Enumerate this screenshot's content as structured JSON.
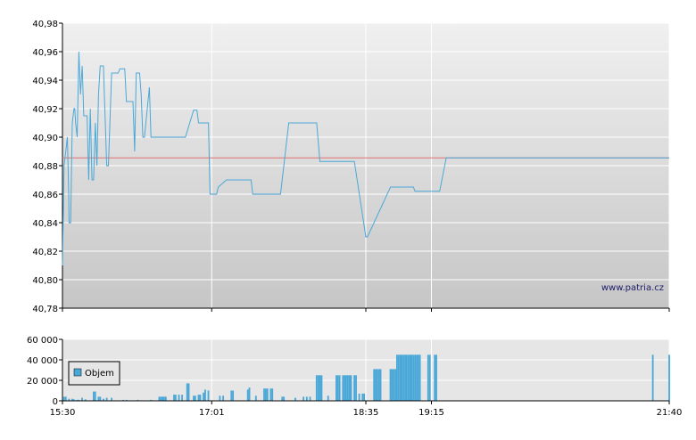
{
  "chart_data": [
    {
      "type": "line",
      "panel": "price",
      "ylim": [
        40.78,
        40.98
      ],
      "y_ticks": [
        "40,98",
        "40,96",
        "40,94",
        "40,92",
        "40,90",
        "40,88",
        "40,86",
        "40,84",
        "40,82",
        "40,80",
        "40,78"
      ],
      "y_tick_values": [
        40.98,
        40.96,
        40.94,
        40.92,
        40.9,
        40.88,
        40.86,
        40.84,
        40.82,
        40.8,
        40.78
      ],
      "x_range_minutes": [
        930,
        1300
      ],
      "reference_line": {
        "value": 40.8855,
        "color": "#e07070"
      },
      "series": [
        {
          "color": "#4aa8d8",
          "x_minutes": [
            930,
            931,
            932,
            933,
            933.8,
            934,
            935,
            936,
            937,
            937.5,
            938,
            939,
            940,
            941,
            942,
            943,
            944,
            945,
            946,
            947,
            948,
            949,
            950,
            951,
            952,
            953,
            954,
            955,
            957,
            958,
            960,
            961,
            962,
            964,
            965,
            967,
            968,
            969,
            970,
            971,
            972,
            973,
            974,
            975,
            976,
            977,
            978,
            979,
            980,
            983,
            984,
            987,
            988,
            989,
            990,
            991,
            994,
            995,
            999,
            1000,
            1005,
            1010,
            1011,
            1012,
            1013,
            1014,
            1015,
            1016,
            1019,
            1020,
            1024,
            1025,
            1030,
            1035,
            1040,
            1045,
            1046,
            1049,
            1050,
            1055,
            1060,
            1063,
            1068,
            1069,
            1072,
            1073,
            1080,
            1085,
            1087,
            1090,
            1093,
            1098,
            1105,
            1108,
            1115,
            1116,
            1130,
            1135,
            1144,
            1145,
            1150,
            1160,
            1164,
            1170,
            1175,
            1180,
            1185,
            1190,
            1200,
            1210,
            1220,
            1230,
            1240,
            1250,
            1260,
            1270,
            1280,
            1290,
            1300
          ],
          "y": [
            40.81,
            40.88,
            40.89,
            40.9,
            40.86,
            40.84,
            40.84,
            40.91,
            40.92,
            40.92,
            40.91,
            40.9,
            40.96,
            40.93,
            40.95,
            40.915,
            40.915,
            40.915,
            40.87,
            40.92,
            40.87,
            40.87,
            40.91,
            40.88,
            40.93,
            40.95,
            40.95,
            40.95,
            40.88,
            40.88,
            40.945,
            40.945,
            40.945,
            40.945,
            40.948,
            40.948,
            40.948,
            40.925,
            40.925,
            40.925,
            40.925,
            40.925,
            40.89,
            40.945,
            40.945,
            40.945,
            40.93,
            40.9,
            40.9,
            40.935,
            40.9,
            40.9,
            40.9,
            40.9,
            40.9,
            40.9,
            40.9,
            40.9,
            40.9,
            40.9,
            40.9,
            40.919,
            40.919,
            40.919,
            40.91,
            40.91,
            40.91,
            40.91,
            40.91,
            40.86,
            40.86,
            40.865,
            40.87,
            40.87,
            40.87,
            40.87,
            40.86,
            40.86,
            40.86,
            40.86,
            40.86,
            40.86,
            40.91,
            40.91,
            40.91,
            40.91,
            40.91,
            40.91,
            40.883,
            40.883,
            40.883,
            40.883,
            40.883,
            40.883,
            40.83,
            40.83,
            40.865,
            40.865,
            40.865,
            40.862,
            40.862,
            40.862,
            40.8855,
            40.8855,
            40.8855,
            40.8855,
            40.8855,
            40.8855,
            40.8855,
            40.8855,
            40.8855,
            40.8855,
            40.8855,
            40.8855,
            40.8855,
            40.8855,
            40.8855,
            40.8855,
            40.8855
          ]
        }
      ],
      "watermark": "www.patria.cz"
    },
    {
      "type": "bar",
      "panel": "volume",
      "ylim": [
        0,
        60000
      ],
      "y_ticks": [
        "60 000",
        "40 000",
        "20 000",
        "0"
      ],
      "y_tick_values": [
        60000,
        40000,
        20000,
        0
      ],
      "x_tick_labels": [
        "15:30",
        "17:01",
        "18:35",
        "19:15",
        "21:40"
      ],
      "x_tick_minutes": [
        930,
        1021,
        1115,
        1155,
        1300
      ],
      "legend": "Objem",
      "color": "#4aa8d8",
      "bars": [
        {
          "x": 931,
          "v": 4000
        },
        {
          "x": 932,
          "v": 4000
        },
        {
          "x": 934,
          "v": 2000
        },
        {
          "x": 936,
          "v": 2000
        },
        {
          "x": 937,
          "v": 1500
        },
        {
          "x": 939,
          "v": 1000
        },
        {
          "x": 940,
          "v": 1000
        },
        {
          "x": 942,
          "v": 3000
        },
        {
          "x": 944,
          "v": 1500
        },
        {
          "x": 949,
          "v": 9000
        },
        {
          "x": 950,
          "v": 9000
        },
        {
          "x": 952,
          "v": 4000
        },
        {
          "x": 953,
          "v": 4000
        },
        {
          "x": 955,
          "v": 2000
        },
        {
          "x": 957,
          "v": 3000
        },
        {
          "x": 960,
          "v": 3000
        },
        {
          "x": 967,
          "v": 1000
        },
        {
          "x": 969,
          "v": 1000
        },
        {
          "x": 976,
          "v": 1000
        },
        {
          "x": 984,
          "v": 1000
        },
        {
          "x": 989,
          "v": 4000
        },
        {
          "x": 990,
          "v": 4000
        },
        {
          "x": 991,
          "v": 4000
        },
        {
          "x": 992,
          "v": 4000
        },
        {
          "x": 993,
          "v": 4000
        },
        {
          "x": 998,
          "v": 6000
        },
        {
          "x": 999,
          "v": 6000
        },
        {
          "x": 1001,
          "v": 6000
        },
        {
          "x": 1003,
          "v": 6000
        },
        {
          "x": 1006,
          "v": 17000
        },
        {
          "x": 1007,
          "v": 17000
        },
        {
          "x": 1010,
          "v": 5000
        },
        {
          "x": 1011,
          "v": 5000
        },
        {
          "x": 1013,
          "v": 6000
        },
        {
          "x": 1014,
          "v": 6000
        },
        {
          "x": 1016,
          "v": 8000
        },
        {
          "x": 1017,
          "v": 11000
        },
        {
          "x": 1019,
          "v": 10000
        },
        {
          "x": 1026,
          "v": 5000
        },
        {
          "x": 1028,
          "v": 5000
        },
        {
          "x": 1033,
          "v": 10000
        },
        {
          "x": 1034,
          "v": 10000
        },
        {
          "x": 1043,
          "v": 11000
        },
        {
          "x": 1044,
          "v": 13000
        },
        {
          "x": 1048,
          "v": 5000
        },
        {
          "x": 1053,
          "v": 12000
        },
        {
          "x": 1054,
          "v": 12000
        },
        {
          "x": 1055,
          "v": 12000
        },
        {
          "x": 1057,
          "v": 12000
        },
        {
          "x": 1058,
          "v": 12000
        },
        {
          "x": 1064,
          "v": 4000
        },
        {
          "x": 1065,
          "v": 4000
        },
        {
          "x": 1072,
          "v": 3000
        },
        {
          "x": 1077,
          "v": 4000
        },
        {
          "x": 1079,
          "v": 4000
        },
        {
          "x": 1081,
          "v": 4000
        },
        {
          "x": 1085,
          "v": 25000
        },
        {
          "x": 1086,
          "v": 25000
        },
        {
          "x": 1087,
          "v": 25000
        },
        {
          "x": 1088,
          "v": 25000
        },
        {
          "x": 1092,
          "v": 5000
        },
        {
          "x": 1097,
          "v": 25000
        },
        {
          "x": 1098,
          "v": 25000
        },
        {
          "x": 1099,
          "v": 25000
        },
        {
          "x": 1101,
          "v": 25000
        },
        {
          "x": 1102,
          "v": 25000
        },
        {
          "x": 1103,
          "v": 25000
        },
        {
          "x": 1104,
          "v": 25000
        },
        {
          "x": 1105,
          "v": 25000
        },
        {
          "x": 1106,
          "v": 25000
        },
        {
          "x": 1108,
          "v": 25000
        },
        {
          "x": 1109,
          "v": 25000
        },
        {
          "x": 1111,
          "v": 7000
        },
        {
          "x": 1113,
          "v": 7000
        },
        {
          "x": 1114,
          "v": 7000
        },
        {
          "x": 1120,
          "v": 31000
        },
        {
          "x": 1121,
          "v": 31000
        },
        {
          "x": 1122,
          "v": 31000
        },
        {
          "x": 1123,
          "v": 31000
        },
        {
          "x": 1124,
          "v": 31000
        },
        {
          "x": 1130,
          "v": 31000
        },
        {
          "x": 1131,
          "v": 31000
        },
        {
          "x": 1132,
          "v": 31000
        },
        {
          "x": 1133,
          "v": 31000
        },
        {
          "x": 1134,
          "v": 45000
        },
        {
          "x": 1135,
          "v": 45000
        },
        {
          "x": 1136,
          "v": 45000
        },
        {
          "x": 1137,
          "v": 45000
        },
        {
          "x": 1138,
          "v": 45000
        },
        {
          "x": 1139,
          "v": 45000
        },
        {
          "x": 1140,
          "v": 45000
        },
        {
          "x": 1141,
          "v": 45000
        },
        {
          "x": 1142,
          "v": 45000
        },
        {
          "x": 1143,
          "v": 45000
        },
        {
          "x": 1144,
          "v": 45000
        },
        {
          "x": 1145,
          "v": 45000
        },
        {
          "x": 1146,
          "v": 45000
        },
        {
          "x": 1147,
          "v": 45000
        },
        {
          "x": 1148,
          "v": 45000
        },
        {
          "x": 1153,
          "v": 45000
        },
        {
          "x": 1154,
          "v": 45000
        },
        {
          "x": 1157,
          "v": 45000
        },
        {
          "x": 1158,
          "v": 45000
        },
        {
          "x": 1290,
          "v": 45000
        },
        {
          "x": 1300,
          "v": 45000
        }
      ]
    }
  ]
}
